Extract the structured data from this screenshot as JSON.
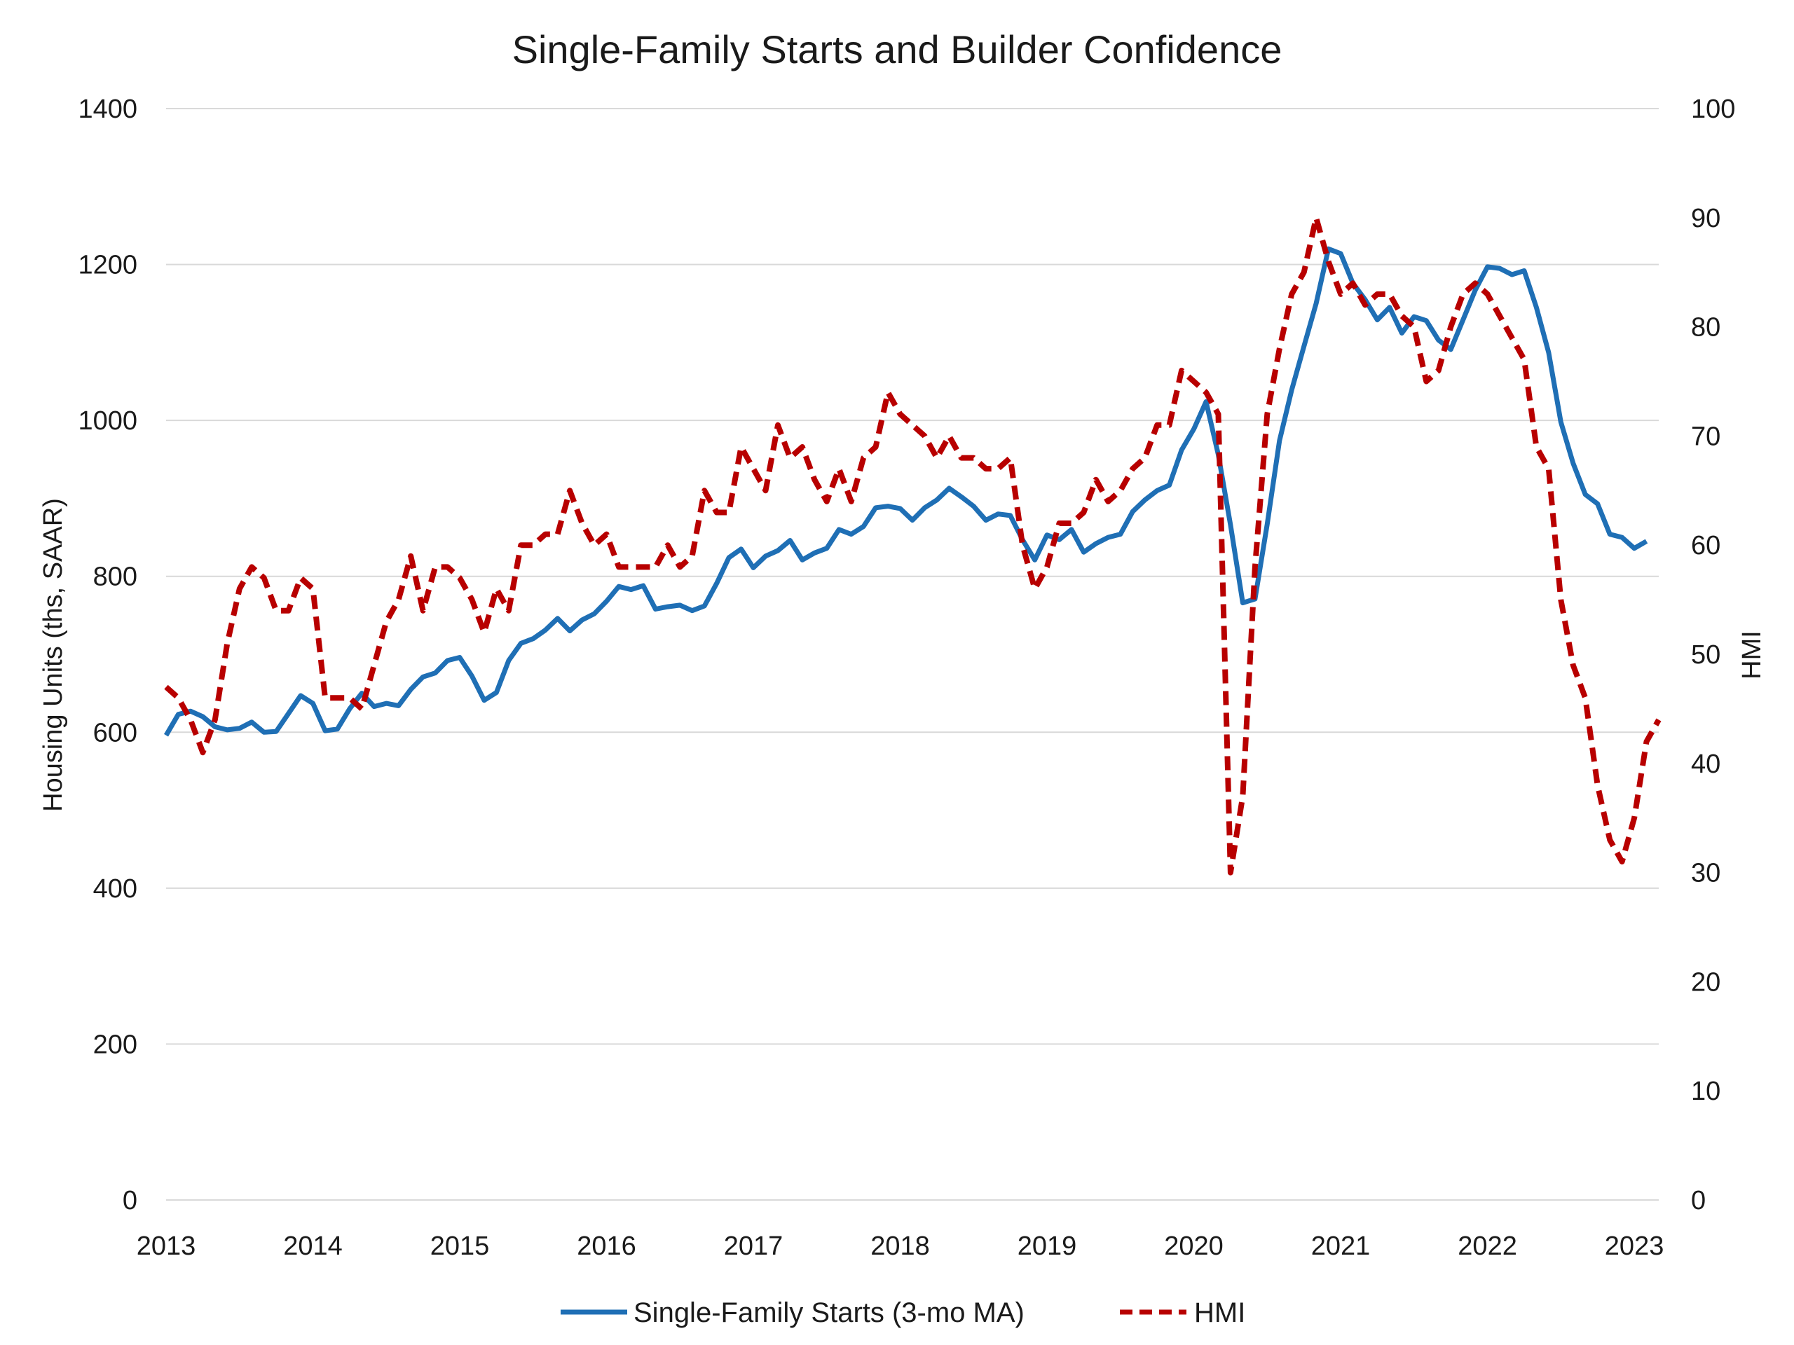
{
  "chart_data": {
    "type": "line",
    "title": "Single-Family Starts and Builder Confidence",
    "ylabel_left": "Housing Units (ths, SAAR)",
    "ylabel_right": "HMI",
    "ylim_left": [
      0,
      1400
    ],
    "ylim_right": [
      0,
      100
    ],
    "yticks_left": [
      "0",
      "200",
      "400",
      "600",
      "800",
      "1000",
      "1200",
      "1400"
    ],
    "yticks_right": [
      "0",
      "10",
      "20",
      "30",
      "40",
      "50",
      "60",
      "70",
      "80",
      "90",
      "100"
    ],
    "xticks": [
      "2013",
      "2014",
      "2015",
      "2016",
      "2017",
      "2018",
      "2019",
      "2020",
      "2021",
      "2022",
      "2023"
    ],
    "grid": true,
    "legend_position": "bottom",
    "series": [
      {
        "name": "Single-Family Starts (3-mo MA)",
        "axis": "left",
        "color": "#1f6fb5",
        "style": "solid",
        "start": "2013-01",
        "values": [
          596,
          623,
          627,
          620,
          607,
          603,
          605,
          613,
          600,
          601,
          624,
          647,
          637,
          602,
          604,
          630,
          650,
          633,
          637,
          634,
          655,
          671,
          676,
          692,
          696,
          672,
          641,
          651,
          692,
          714,
          720,
          731,
          746,
          730,
          744,
          752,
          768,
          787,
          783,
          788,
          758,
          761,
          763,
          756,
          762,
          791,
          824,
          835,
          811,
          826,
          833,
          846,
          821,
          830,
          836,
          860,
          854,
          864,
          888,
          890,
          887,
          872,
          888,
          898,
          913,
          902,
          890,
          872,
          880,
          878,
          847,
          821,
          853,
          847,
          860,
          831,
          842,
          850,
          854,
          883,
          898,
          910,
          917,
          962,
          989,
          1024,
          956,
          866,
          766,
          771,
          867,
          974,
          1039,
          1095,
          1150,
          1220,
          1214,
          1176,
          1155,
          1129,
          1145,
          1112,
          1133,
          1128,
          1103,
          1091,
          1129,
          1167,
          1197,
          1195,
          1187,
          1192,
          1145,
          1087,
          998,
          945,
          905,
          893,
          854,
          850,
          836,
          845
        ]
      },
      {
        "name": "HMI",
        "axis": "right",
        "color": "#b80000",
        "style": "dashed",
        "start": "2013-01",
        "values": [
          47,
          46,
          44,
          41,
          44,
          51,
          56,
          58,
          57,
          54,
          54,
          57,
          56,
          46,
          46,
          46,
          45,
          49,
          53,
          55,
          59,
          54,
          58,
          58,
          57,
          55,
          52,
          56,
          54,
          60,
          60,
          61,
          61,
          65,
          62,
          60,
          61,
          58,
          58,
          58,
          58,
          60,
          58,
          59,
          65,
          63,
          63,
          69,
          67,
          65,
          71,
          68,
          69,
          66,
          64,
          67,
          64,
          68,
          69,
          74,
          72,
          71,
          70,
          68,
          70,
          68,
          68,
          67,
          67,
          68,
          60,
          56,
          58,
          62,
          62,
          63,
          66,
          64,
          65,
          67,
          68,
          71,
          71,
          76,
          75,
          74,
          72,
          30,
          37,
          58,
          72,
          78,
          83,
          85,
          90,
          86,
          83,
          84,
          82,
          83,
          83,
          81,
          80,
          75,
          76,
          80,
          83,
          84,
          83,
          81,
          79,
          77,
          69,
          67,
          55,
          49,
          46,
          38,
          33,
          31,
          35,
          42,
          44
        ]
      }
    ]
  }
}
